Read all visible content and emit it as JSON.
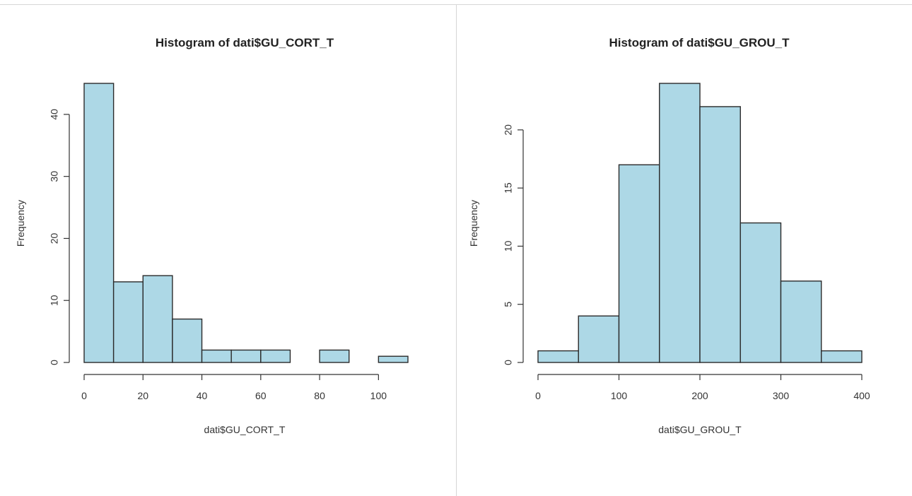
{
  "chart_data": [
    {
      "type": "bar",
      "title": "Histogram of dati$GU_CORT_T",
      "xlabel": "dati$GU_CORT_T",
      "ylabel": "Frequency",
      "bins": [
        [
          0,
          10
        ],
        [
          10,
          20
        ],
        [
          20,
          30
        ],
        [
          30,
          40
        ],
        [
          40,
          50
        ],
        [
          50,
          60
        ],
        [
          60,
          70
        ],
        [
          70,
          80
        ],
        [
          80,
          90
        ],
        [
          90,
          100
        ],
        [
          100,
          110
        ]
      ],
      "values": [
        45,
        13,
        14,
        7,
        2,
        2,
        2,
        0,
        2,
        0,
        1
      ],
      "xlim": [
        0,
        110
      ],
      "ylim": [
        0,
        45
      ],
      "xticks": [
        0,
        20,
        40,
        60,
        80,
        100
      ],
      "yticks": [
        0,
        10,
        20,
        30,
        40
      ],
      "bar_color": "#add8e6",
      "grid": false
    },
    {
      "type": "bar",
      "title": "Histogram of dati$GU_GROU_T",
      "xlabel": "dati$GU_GROU_T",
      "ylabel": "Frequency",
      "bins": [
        [
          0,
          50
        ],
        [
          50,
          100
        ],
        [
          100,
          150
        ],
        [
          150,
          200
        ],
        [
          200,
          250
        ],
        [
          250,
          300
        ],
        [
          300,
          350
        ],
        [
          350,
          400
        ]
      ],
      "values": [
        1,
        4,
        17,
        24,
        22,
        12,
        7,
        1
      ],
      "xlim": [
        0,
        400
      ],
      "ylim": [
        0,
        24
      ],
      "xticks": [
        0,
        100,
        200,
        300,
        400
      ],
      "yticks": [
        0,
        5,
        10,
        15,
        20
      ],
      "bar_color": "#add8e6",
      "grid": false
    }
  ]
}
